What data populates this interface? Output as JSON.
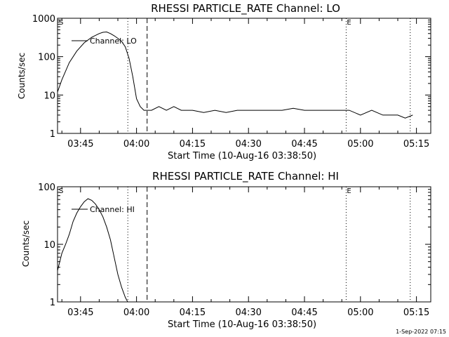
{
  "footer_timestamp": "1-Sep-2022 07:15",
  "chart_data": [
    {
      "type": "line",
      "title": "RHESSI PARTICLE_RATE Channel: LO",
      "xlabel": "Start Time (10-Aug-16 03:38:50)",
      "ylabel": "Counts/sec",
      "yscale": "log",
      "xlim": [
        "03:38:50",
        "05:18:50"
      ],
      "ylim": [
        1,
        1000
      ],
      "xticks": [
        "03:45",
        "04:00",
        "04:15",
        "04:30",
        "04:45",
        "05:00",
        "05:15"
      ],
      "yticks": [
        "1",
        "10",
        "100",
        "1000"
      ],
      "markers": [
        {
          "type": "dotted",
          "time": "03:57:40",
          "label": ""
        },
        {
          "type": "dashed",
          "time": "04:02:50",
          "label": ""
        },
        {
          "type": "dotted",
          "time": "04:56:10",
          "label": "E"
        },
        {
          "type": "dotted",
          "time": "05:13:20",
          "label": ""
        }
      ],
      "corner_label": "S",
      "series": [
        {
          "name": "Channel: LO",
          "x": [
            "03:38:50",
            "03:40:00",
            "03:42:00",
            "03:44:00",
            "03:46:00",
            "03:48:00",
            "03:50:00",
            "03:51:00",
            "03:52:00",
            "03:53:00",
            "03:54:00",
            "03:55:00",
            "03:56:00",
            "03:57:00",
            "03:58:00",
            "03:59:00",
            "04:00:00",
            "04:01:00",
            "04:02:00",
            "04:04:00",
            "04:06:00",
            "04:08:00",
            "04:10:00",
            "04:12:00",
            "04:15:00",
            "04:18:00",
            "04:21:00",
            "04:24:00",
            "04:27:00",
            "04:30:00",
            "04:33:00",
            "04:36:00",
            "04:39:00",
            "04:42:00",
            "04:45:00",
            "04:48:00",
            "04:51:00",
            "04:54:00",
            "04:57:00",
            "05:00:00",
            "05:03:00",
            "05:06:00",
            "05:08:00",
            "05:10:00",
            "05:12:00",
            "05:14:00"
          ],
          "y": [
            12,
            25,
            70,
            140,
            230,
            320,
            400,
            430,
            440,
            400,
            350,
            300,
            250,
            180,
            90,
            30,
            8,
            5,
            4,
            4,
            5,
            4,
            5,
            4,
            4,
            3.5,
            4,
            3.5,
            4,
            4,
            4,
            4,
            4,
            4.5,
            4,
            4,
            4,
            4,
            4,
            3,
            4,
            3,
            3,
            3,
            2.5,
            3
          ]
        }
      ]
    },
    {
      "type": "line",
      "title": "RHESSI PARTICLE_RATE Channel: HI",
      "xlabel": "Start Time (10-Aug-16 03:38:50)",
      "ylabel": "Counts/sec",
      "yscale": "log",
      "xlim": [
        "03:38:50",
        "05:18:50"
      ],
      "ylim": [
        1,
        100
      ],
      "xticks": [
        "03:45",
        "04:00",
        "04:15",
        "04:30",
        "04:45",
        "05:00",
        "05:15"
      ],
      "yticks": [
        "1",
        "10",
        "100"
      ],
      "markers": [
        {
          "type": "dotted",
          "time": "03:57:40",
          "label": ""
        },
        {
          "type": "dashed",
          "time": "04:02:50",
          "label": ""
        },
        {
          "type": "dotted",
          "time": "04:56:10",
          "label": "E"
        },
        {
          "type": "dotted",
          "time": "05:13:20",
          "label": ""
        }
      ],
      "corner_label": "S",
      "series": [
        {
          "name": "Channel: HI",
          "x": [
            "03:38:50",
            "03:40:00",
            "03:41:00",
            "03:42:00",
            "03:43:00",
            "03:44:00",
            "03:45:00",
            "03:46:00",
            "03:47:00",
            "03:48:00",
            "03:49:00",
            "03:50:00",
            "03:51:00",
            "03:52:00",
            "03:53:00",
            "03:54:00",
            "03:55:00",
            "03:56:00",
            "03:57:00",
            "03:58:00"
          ],
          "y": [
            3.5,
            7,
            10,
            15,
            25,
            35,
            45,
            55,
            62,
            58,
            50,
            40,
            30,
            20,
            12,
            6,
            3,
            1.8,
            1.2,
            0.9
          ]
        }
      ]
    }
  ]
}
